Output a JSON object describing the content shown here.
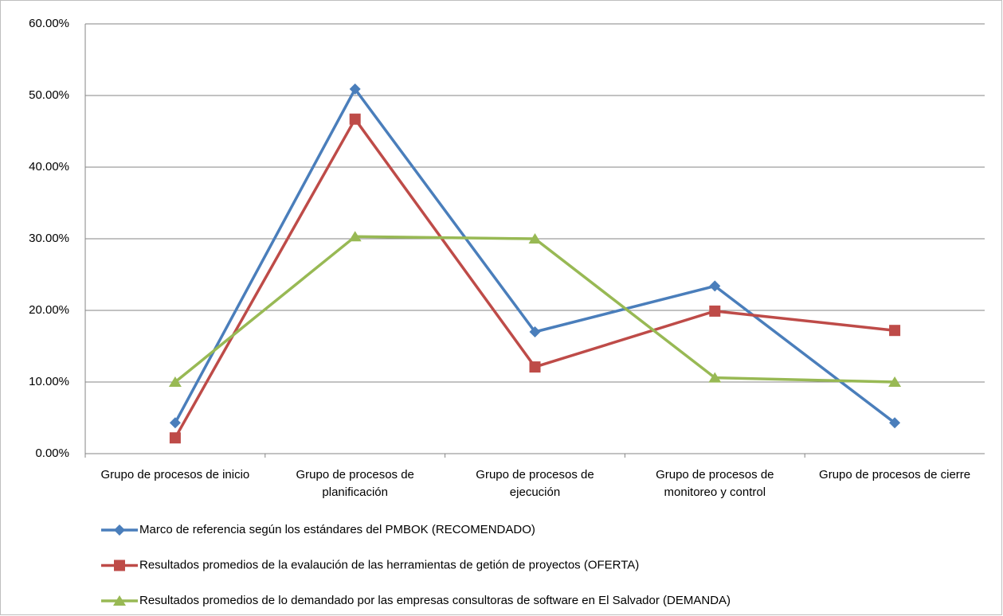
{
  "chart_data": {
    "type": "line",
    "categories": [
      "Grupo de procesos de inicio",
      "Grupo de procesos de planificación",
      "Grupo de procesos de ejecución",
      "Grupo de procesos de monitoreo y control",
      "Grupo de procesos de cierre"
    ],
    "series": [
      {
        "name": "Marco de referencia según los estándares del PMBOK (RECOMENDADO)",
        "color": "#4a7ebb",
        "marker": "diamond",
        "values": [
          4.3,
          50.9,
          17.0,
          23.4,
          4.3
        ]
      },
      {
        "name": "Resultados promedios de la evalaución de las herramientas de getión de proyectos (OFERTA)",
        "color": "#be4b48",
        "marker": "square",
        "values": [
          2.2,
          46.7,
          12.1,
          19.9,
          17.2
        ]
      },
      {
        "name": "Resultados promedios de lo demandado por las empresas consultoras de software en El Salvador (DEMANDA)",
        "color": "#98b954",
        "marker": "triangle",
        "values": [
          10.0,
          30.3,
          30.0,
          10.6,
          10.0
        ]
      }
    ],
    "ylim": [
      0,
      60
    ],
    "yticks": [
      {
        "value": 0,
        "label": "0.00%"
      },
      {
        "value": 10,
        "label": "10.00%"
      },
      {
        "value": 20,
        "label": "20.00%"
      },
      {
        "value": 30,
        "label": "30.00%"
      },
      {
        "value": 40,
        "label": "40.00%"
      },
      {
        "value": 50,
        "label": "50.00%"
      },
      {
        "value": 60,
        "label": "60.00%"
      }
    ],
    "grid": true,
    "legend": "bottom"
  }
}
